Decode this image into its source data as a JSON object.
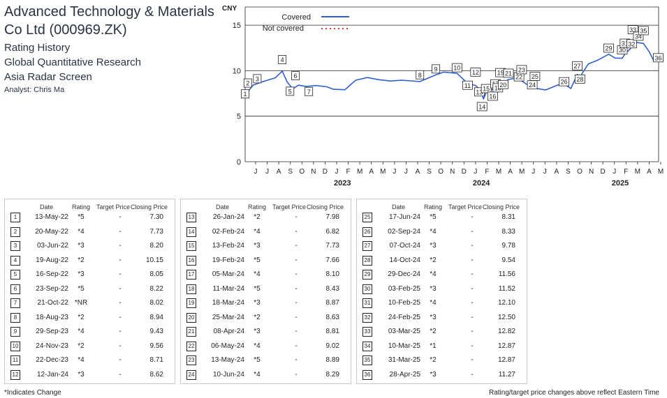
{
  "header": {
    "title": "Advanced Technology & Materials Co Ltd (000969.ZK)",
    "line1": "Rating History",
    "line2": "Global Quantitative Research",
    "line3": "Asia Radar Screen",
    "analyst": "Analyst: Chris Ma"
  },
  "table_headers": {
    "date": "Date",
    "rating": "Rating",
    "target": "Target Price",
    "closing": "Closing Price"
  },
  "footer": {
    "left": "*Indicates Change",
    "right": "Rating/target price changes above reflect Eastern Time"
  },
  "chart_data": {
    "type": "line",
    "ylabel": "CNY",
    "y_ticks": [
      0,
      5,
      10,
      15
    ],
    "ylim": [
      0,
      17
    ],
    "grid": true,
    "legend": {
      "placement": "top-left",
      "entries": [
        {
          "label": "Covered",
          "color": "#2f5fd0",
          "style": "solid"
        },
        {
          "label": "Not covered",
          "color": "#e03a2f",
          "style": "dotted"
        }
      ]
    },
    "month_ticks": [
      "J",
      "J",
      "A",
      "S",
      "O",
      "N",
      "D",
      "J",
      "F",
      "M",
      "A",
      "M",
      "J",
      "J",
      "A",
      "S",
      "O",
      "N",
      "D",
      "J",
      "F",
      "M",
      "A",
      "M",
      "J",
      "J",
      "A",
      "S",
      "O",
      "N",
      "D",
      "J",
      "F",
      "M",
      "A",
      "M"
    ],
    "year_labels": [
      {
        "label": "2023",
        "month_index": 7
      },
      {
        "label": "2024",
        "month_index": 19
      },
      {
        "label": "2025",
        "month_index": 31
      }
    ],
    "series": [
      {
        "x": [
          "2022-05-13",
          "2022-06-03",
          "2022-07-01",
          "2022-08-01",
          "2022-08-19",
          "2022-09-01",
          "2022-09-16",
          "2022-10-01",
          "2022-10-21",
          "2022-11-15",
          "2022-12-15",
          "2023-01-01",
          "2023-02-01",
          "2023-03-01",
          "2023-04-01",
          "2023-05-01",
          "2023-06-01",
          "2023-07-01",
          "2023-08-18",
          "2023-09-29",
          "2023-10-20",
          "2023-11-24",
          "2023-12-22",
          "2024-01-12",
          "2024-01-26",
          "2024-02-02",
          "2024-02-13",
          "2024-02-19",
          "2024-03-05",
          "2024-03-11",
          "2024-03-18",
          "2024-03-25",
          "2024-04-08",
          "2024-05-06",
          "2024-05-13",
          "2024-06-10",
          "2024-06-17",
          "2024-07-15",
          "2024-08-15",
          "2024-09-02",
          "2024-09-20",
          "2024-10-07",
          "2024-10-14",
          "2024-11-05",
          "2024-12-01",
          "2024-12-29",
          "2025-01-15",
          "2025-02-03",
          "2025-02-10",
          "2025-02-24",
          "2025-03-03",
          "2025-03-10",
          "2025-03-31",
          "2025-04-15",
          "2025-04-28",
          "2025-05-08"
        ],
        "y": [
          7.3,
          8.2,
          8.6,
          9.2,
          10.15,
          9.0,
          8.05,
          8.22,
          8.02,
          8.3,
          8.4,
          8.2,
          8.0,
          8.8,
          9.0,
          8.9,
          9.0,
          9.2,
          8.94,
          9.43,
          9.6,
          9.56,
          8.71,
          8.62,
          7.98,
          6.82,
          7.73,
          7.66,
          8.1,
          8.43,
          8.87,
          8.63,
          8.81,
          9.02,
          8.89,
          8.29,
          8.31,
          7.9,
          8.2,
          8.33,
          8.0,
          9.78,
          9.54,
          10.8,
          11.0,
          11.56,
          11.3,
          11.52,
          12.1,
          12.5,
          12.82,
          12.87,
          12.87,
          12.2,
          11.27,
          11.1
        ]
      }
    ],
    "markers": [
      {
        "n": 1,
        "date": "2022-05-13",
        "price": 7.3
      },
      {
        "n": 2,
        "date": "2022-05-20",
        "price": 7.73
      },
      {
        "n": 3,
        "date": "2022-06-03",
        "price": 8.2
      },
      {
        "n": 4,
        "date": "2022-08-19",
        "price": 10.15
      },
      {
        "n": 5,
        "date": "2022-09-16",
        "price": 8.05
      },
      {
        "n": 6,
        "date": "2022-09-23",
        "price": 8.22
      },
      {
        "n": 7,
        "date": "2022-10-21",
        "price": 8.02
      },
      {
        "n": 8,
        "date": "2023-08-18",
        "price": 8.94
      },
      {
        "n": 9,
        "date": "2023-09-29",
        "price": 9.43
      },
      {
        "n": 10,
        "date": "2023-11-24",
        "price": 9.56
      },
      {
        "n": 11,
        "date": "2023-12-22",
        "price": 8.71
      },
      {
        "n": 12,
        "date": "2024-01-12",
        "price": 8.62
      },
      {
        "n": 13,
        "date": "2024-01-26",
        "price": 7.98
      },
      {
        "n": 14,
        "date": "2024-02-02",
        "price": 6.82
      },
      {
        "n": 15,
        "date": "2024-02-13",
        "price": 7.73
      },
      {
        "n": 16,
        "date": "2024-02-19",
        "price": 7.66
      },
      {
        "n": 17,
        "date": "2024-03-05",
        "price": 8.1
      },
      {
        "n": 18,
        "date": "2024-03-11",
        "price": 8.43
      },
      {
        "n": 19,
        "date": "2024-03-18",
        "price": 8.87
      },
      {
        "n": 20,
        "date": "2024-03-25",
        "price": 8.63
      },
      {
        "n": 21,
        "date": "2024-04-08",
        "price": 8.81
      },
      {
        "n": 22,
        "date": "2024-05-06",
        "price": 9.02
      },
      {
        "n": 23,
        "date": "2024-05-13",
        "price": 8.89
      },
      {
        "n": 24,
        "date": "2024-06-10",
        "price": 8.29
      },
      {
        "n": 25,
        "date": "2024-06-17",
        "price": 8.31
      },
      {
        "n": 26,
        "date": "2024-09-02",
        "price": 8.33
      },
      {
        "n": 27,
        "date": "2024-10-07",
        "price": 9.78
      },
      {
        "n": 28,
        "date": "2024-10-14",
        "price": 9.54
      },
      {
        "n": 29,
        "date": "2024-12-29",
        "price": 11.56
      },
      {
        "n": 30,
        "date": "2025-02-03",
        "price": 11.52
      },
      {
        "n": 31,
        "date": "2025-02-10",
        "price": 12.1
      },
      {
        "n": 32,
        "date": "2025-02-24",
        "price": 12.5
      },
      {
        "n": 33,
        "date": "2025-03-03",
        "price": 12.82
      },
      {
        "n": 34,
        "date": "2025-03-10",
        "price": 12.87
      },
      {
        "n": 35,
        "date": "2025-03-31",
        "price": 12.87
      },
      {
        "n": 36,
        "date": "2025-04-28",
        "price": 11.27
      }
    ]
  },
  "rating_table": [
    {
      "n": "1",
      "date": "13-May-22",
      "rating": "*5",
      "target": "-",
      "close": "7.30"
    },
    {
      "n": "2",
      "date": "20-May-22",
      "rating": "*4",
      "target": "-",
      "close": "7.73"
    },
    {
      "n": "3",
      "date": "03-Jun-22",
      "rating": "*3",
      "target": "-",
      "close": "8.20"
    },
    {
      "n": "4",
      "date": "19-Aug-22",
      "rating": "*2",
      "target": "-",
      "close": "10.15"
    },
    {
      "n": "5",
      "date": "16-Sep-22",
      "rating": "*3",
      "target": "-",
      "close": "8.05"
    },
    {
      "n": "6",
      "date": "23-Sep-22",
      "rating": "*5",
      "target": "-",
      "close": "8.22"
    },
    {
      "n": "7",
      "date": "21-Oct-22",
      "rating": "*NR",
      "target": "-",
      "close": "8.02"
    },
    {
      "n": "8",
      "date": "18-Aug-23",
      "rating": "*2",
      "target": "-",
      "close": "8.94"
    },
    {
      "n": "9",
      "date": "29-Sep-23",
      "rating": "*4",
      "target": "-",
      "close": "9.43"
    },
    {
      "n": "10",
      "date": "24-Nov-23",
      "rating": "*2",
      "target": "-",
      "close": "9.56"
    },
    {
      "n": "11",
      "date": "22-Dec-23",
      "rating": "*4",
      "target": "-",
      "close": "8.71"
    },
    {
      "n": "12",
      "date": "12-Jan-24",
      "rating": "*3",
      "target": "-",
      "close": "8.62"
    },
    {
      "n": "13",
      "date": "26-Jan-24",
      "rating": "*2",
      "target": "-",
      "close": "7.98"
    },
    {
      "n": "14",
      "date": "02-Feb-24",
      "rating": "*4",
      "target": "-",
      "close": "6.82"
    },
    {
      "n": "15",
      "date": "13-Feb-24",
      "rating": "*3",
      "target": "-",
      "close": "7.73"
    },
    {
      "n": "16",
      "date": "19-Feb-24",
      "rating": "*5",
      "target": "-",
      "close": "7.66"
    },
    {
      "n": "17",
      "date": "05-Mar-24",
      "rating": "*4",
      "target": "-",
      "close": "8.10"
    },
    {
      "n": "18",
      "date": "11-Mar-24",
      "rating": "*5",
      "target": "-",
      "close": "8.43"
    },
    {
      "n": "19",
      "date": "18-Mar-24",
      "rating": "*3",
      "target": "-",
      "close": "8.87"
    },
    {
      "n": "20",
      "date": "25-Mar-24",
      "rating": "*2",
      "target": "-",
      "close": "8.63"
    },
    {
      "n": "21",
      "date": "08-Apr-24",
      "rating": "*3",
      "target": "-",
      "close": "8.81"
    },
    {
      "n": "22",
      "date": "06-May-24",
      "rating": "*4",
      "target": "-",
      "close": "9.02"
    },
    {
      "n": "23",
      "date": "13-May-24",
      "rating": "*5",
      "target": "-",
      "close": "8.89"
    },
    {
      "n": "24",
      "date": "10-Jun-24",
      "rating": "*4",
      "target": "-",
      "close": "8.29"
    },
    {
      "n": "25",
      "date": "17-Jun-24",
      "rating": "*5",
      "target": "-",
      "close": "8.31"
    },
    {
      "n": "26",
      "date": "02-Sep-24",
      "rating": "*4",
      "target": "-",
      "close": "8.33"
    },
    {
      "n": "27",
      "date": "07-Oct-24",
      "rating": "*3",
      "target": "-",
      "close": "9.78"
    },
    {
      "n": "28",
      "date": "14-Oct-24",
      "rating": "*2",
      "target": "-",
      "close": "9.54"
    },
    {
      "n": "29",
      "date": "29-Dec-24",
      "rating": "*4",
      "target": "-",
      "close": "11.56"
    },
    {
      "n": "30",
      "date": "03-Feb-25",
      "rating": "*3",
      "target": "-",
      "close": "11.52"
    },
    {
      "n": "31",
      "date": "10-Feb-25",
      "rating": "*4",
      "target": "-",
      "close": "12.10"
    },
    {
      "n": "32",
      "date": "24-Feb-25",
      "rating": "*3",
      "target": "-",
      "close": "12.50"
    },
    {
      "n": "33",
      "date": "03-Mar-25",
      "rating": "*2",
      "target": "-",
      "close": "12.82"
    },
    {
      "n": "34",
      "date": "10-Mar-25",
      "rating": "*1",
      "target": "-",
      "close": "12.87"
    },
    {
      "n": "35",
      "date": "31-Mar-25",
      "rating": "*2",
      "target": "-",
      "close": "12.87"
    },
    {
      "n": "36",
      "date": "28-Apr-25",
      "rating": "*3",
      "target": "-",
      "close": "11.27"
    }
  ]
}
